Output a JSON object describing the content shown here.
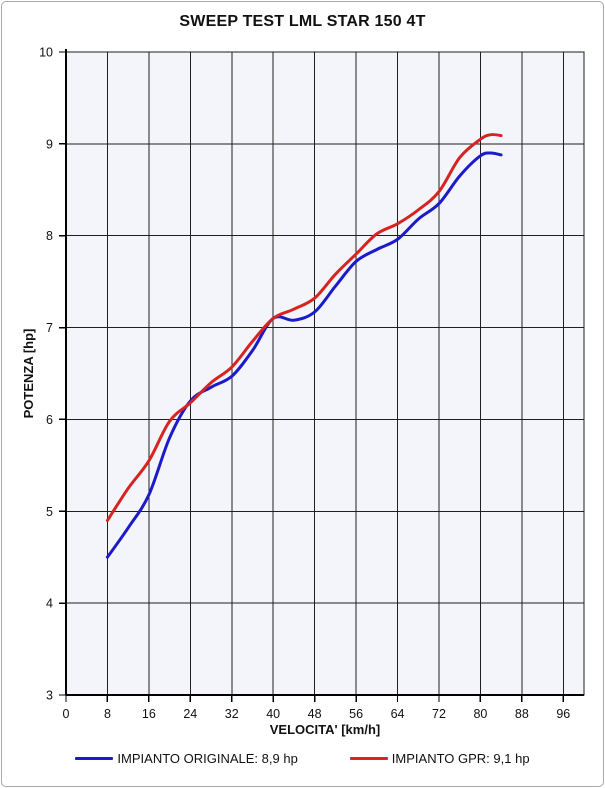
{
  "title": "SWEEP TEST LML STAR 150 4T",
  "colors": {
    "blue_series": "#1b1bc8",
    "red_series": "#d62422",
    "gridline": "#1f1f1f",
    "plot_bg": "#f3f5fa",
    "text": "#111111",
    "frame_border": "#aaaaaa"
  },
  "chart_data": {
    "type": "line",
    "title": "SWEEP TEST LML STAR 150 4T",
    "xlabel": "VELOCITA'  [km/h]",
    "ylabel": "POTENZA [hp]",
    "xlim": [
      0,
      100
    ],
    "ylim": [
      3,
      10
    ],
    "x_ticks": [
      0,
      8,
      16,
      24,
      32,
      40,
      48,
      56,
      64,
      72,
      80,
      88,
      96
    ],
    "y_ticks": [
      3,
      4,
      5,
      6,
      7,
      8,
      9,
      10
    ],
    "grid": true,
    "legend_position": "bottom",
    "x": [
      8,
      12,
      16,
      20,
      24,
      28,
      32,
      36,
      40,
      44,
      48,
      52,
      56,
      60,
      64,
      68,
      72,
      76,
      80,
      82,
      84
    ],
    "series": [
      {
        "name": "IMPIANTO ORIGINALE: 8,9 hp",
        "color": "#1b1bc8",
        "peak_hp": "8,9",
        "values": [
          4.5,
          4.82,
          5.18,
          5.8,
          6.2,
          6.35,
          6.47,
          6.75,
          7.1,
          7.08,
          7.17,
          7.45,
          7.72,
          7.85,
          7.96,
          8.18,
          8.35,
          8.65,
          8.87,
          8.9,
          8.88
        ]
      },
      {
        "name": "IMPIANTO GPR: 9,1 hp",
        "color": "#d62422",
        "peak_hp": "9,1",
        "values": [
          4.9,
          5.25,
          5.55,
          5.98,
          6.18,
          6.4,
          6.57,
          6.85,
          7.1,
          7.2,
          7.32,
          7.58,
          7.8,
          8.02,
          8.13,
          8.28,
          8.48,
          8.85,
          9.05,
          9.1,
          9.09
        ]
      }
    ]
  }
}
